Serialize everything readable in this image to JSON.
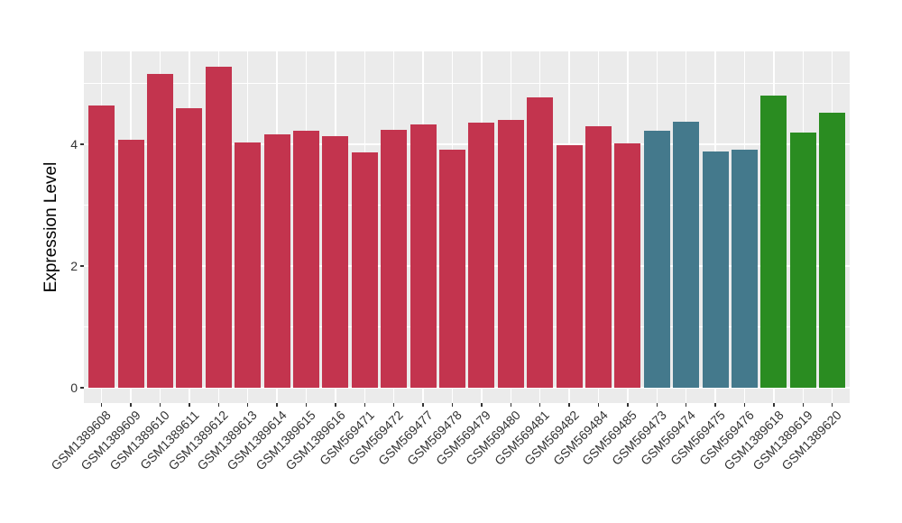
{
  "chart_data": {
    "type": "bar",
    "title": "",
    "xlabel": "",
    "ylabel": "Expression Level",
    "yticks": [
      0,
      2,
      4
    ],
    "yminor": [
      1,
      3,
      5
    ],
    "ylim": [
      0,
      5.45
    ],
    "grid": true,
    "legend": "none",
    "panel_background": "#EBEBEB",
    "gridline_color": "#FFFFFF",
    "tick_color": "#333333",
    "categories": [
      "GSM1389608",
      "GSM1389609",
      "GSM1389610",
      "GSM1389611",
      "GSM1389612",
      "GSM1389613",
      "GSM1389614",
      "GSM1389615",
      "GSM1389616",
      "GSM569471",
      "GSM569472",
      "GSM569477",
      "GSM569478",
      "GSM569479",
      "GSM569480",
      "GSM569481",
      "GSM569482",
      "GSM569484",
      "GSM569485",
      "GSM569473",
      "GSM569474",
      "GSM569475",
      "GSM569476",
      "GSM1389618",
      "GSM1389619",
      "GSM1389620"
    ],
    "values": [
      4.63,
      4.07,
      5.16,
      4.59,
      5.28,
      4.03,
      4.16,
      4.22,
      4.14,
      3.87,
      4.23,
      4.33,
      3.91,
      4.35,
      4.4,
      4.77,
      3.99,
      4.29,
      4.01,
      4.22,
      4.37,
      3.88,
      3.91,
      4.8,
      4.2,
      4.52
    ],
    "bar_groups": [
      "red",
      "red",
      "red",
      "red",
      "red",
      "red",
      "red",
      "red",
      "red",
      "red",
      "red",
      "red",
      "red",
      "red",
      "red",
      "red",
      "red",
      "red",
      "red",
      "teal",
      "teal",
      "teal",
      "teal",
      "green",
      "green",
      "green"
    ],
    "group_colors": {
      "red": "#C3344E",
      "teal": "#44798C",
      "green": "#2A8C21"
    }
  }
}
